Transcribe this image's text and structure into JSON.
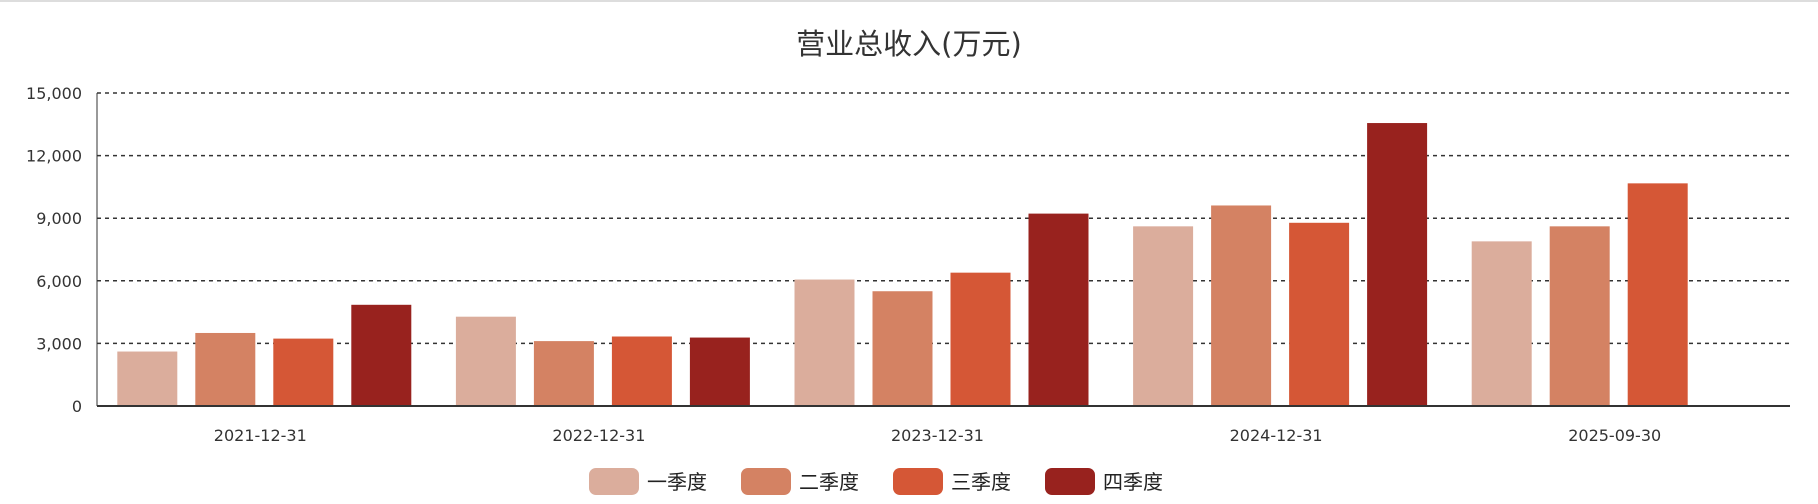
{
  "chart_data": {
    "type": "bar",
    "title": "营业总收入(万元)",
    "xlabel": "",
    "ylabel": "",
    "ylim": [
      0,
      15000
    ],
    "yticks": [
      0,
      3000,
      6000,
      9000,
      12000,
      15000
    ],
    "ytick_labels": [
      "0",
      "3,000",
      "6,000",
      "9,000",
      "12,000",
      "15,000"
    ],
    "grid": true,
    "legend_position": "bottom-center",
    "categories": [
      "2021-12-31",
      "2022-12-31",
      "2023-12-31",
      "2024-12-31",
      "2025-09-30"
    ],
    "series": [
      {
        "name": "一季度",
        "color": "#dbad9c",
        "values": [
          2610,
          4280,
          6060,
          8610,
          7890
        ]
      },
      {
        "name": "二季度",
        "color": "#d48263",
        "values": [
          3500,
          3110,
          5500,
          9610,
          8610
        ]
      },
      {
        "name": "三季度",
        "color": "#d55736",
        "values": [
          3230,
          3330,
          6390,
          8780,
          10670
        ]
      },
      {
        "name": "四季度",
        "color": "#98221e",
        "values": [
          4850,
          3280,
          9220,
          13560,
          null
        ]
      }
    ]
  }
}
